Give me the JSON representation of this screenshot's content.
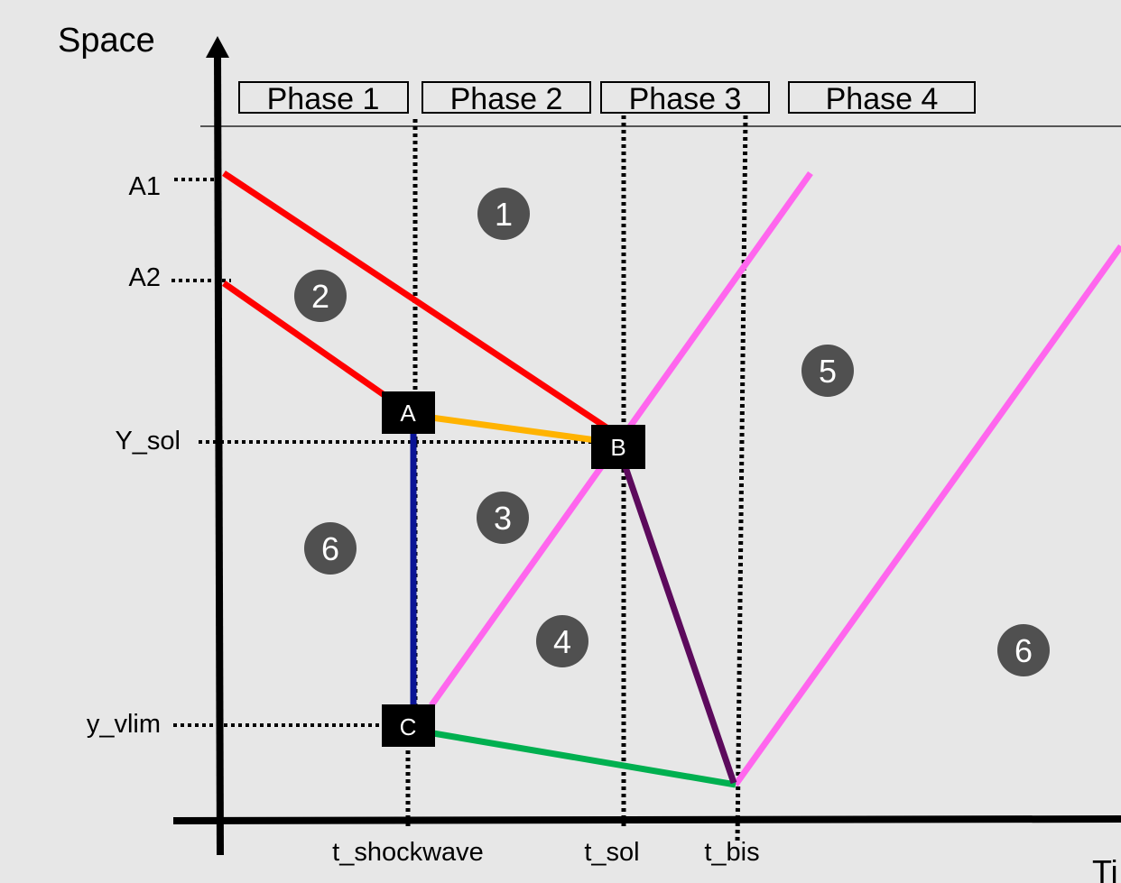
{
  "axes": {
    "y_title": "Space",
    "x_title": "Ti"
  },
  "phases": [
    "Phase 1",
    "Phase 2",
    "Phase 3",
    "Phase 4"
  ],
  "y_labels": {
    "a1": "A1",
    "a2": "A2",
    "y_sol": "Y_sol",
    "y_vlim": "y_vlim"
  },
  "x_labels": {
    "t_shockwave": "t_shockwave",
    "t_sol": "t_sol",
    "t_bis": "t_bis"
  },
  "points": {
    "a": "A",
    "b": "B",
    "c": "C"
  },
  "regions": {
    "r1": "1",
    "r2": "2",
    "r3": "3",
    "r4": "4",
    "r5": "5",
    "r6_left": "6",
    "r6_right": "6"
  },
  "colors": {
    "background": "#e7e7e7",
    "red_line": "#ff0000",
    "magenta_line": "#ff66ee",
    "orange_line": "#ffb300",
    "blue_line": "#0a1496",
    "green_line": "#00b050",
    "purple_line": "#5c0a5c",
    "box_fill": "#000000",
    "region_badge": "#505050"
  }
}
